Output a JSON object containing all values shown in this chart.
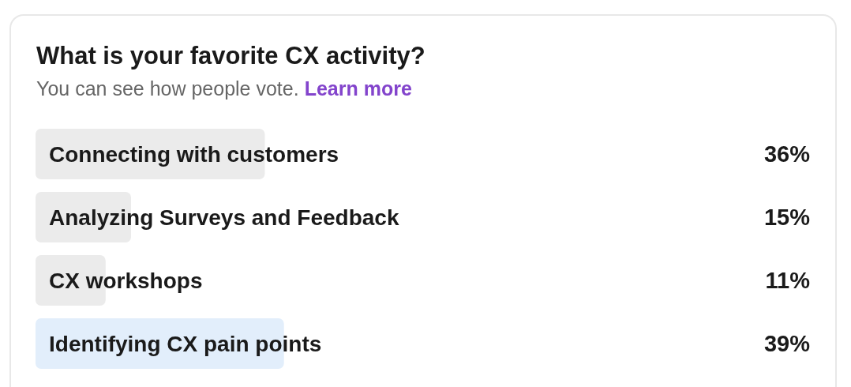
{
  "chart_data": {
    "type": "bar",
    "orientation": "horizontal",
    "title": "What is your favorite CX activity?",
    "subtitle": "You can see how people vote.",
    "annotations": [
      "Learn more"
    ],
    "categories": [
      "Connecting with customers",
      "Analyzing Surveys and Feedback",
      "CX workshops",
      "Identifying CX pain points"
    ],
    "values": [
      36,
      15,
      11,
      39
    ],
    "colors": [
      "#ebebeb",
      "#ebebeb",
      "#ebebeb",
      "#e2eefb"
    ],
    "value_labels": [
      "36%",
      "15%",
      "11%",
      "39%"
    ],
    "tick_labels": "y"
  }
}
